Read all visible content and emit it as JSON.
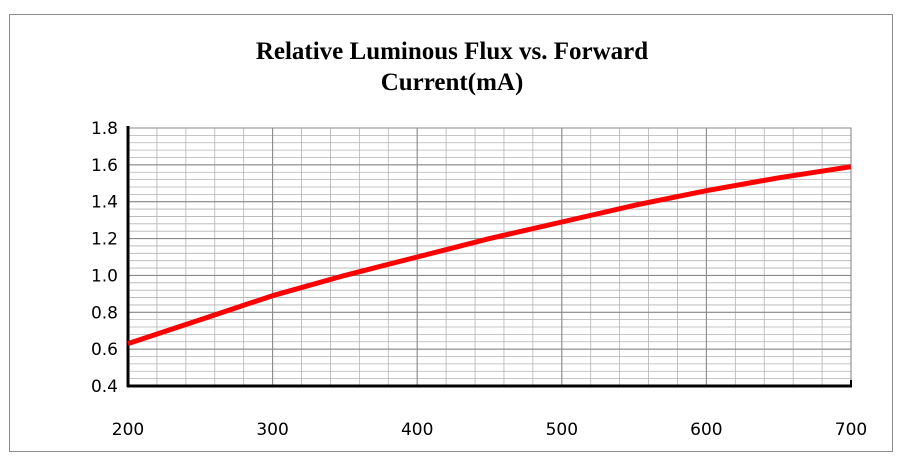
{
  "colors": {
    "series": "#ff0000",
    "grid": "#b3b3b3",
    "axis": "#000000"
  },
  "chart_data": {
    "type": "line",
    "title": "Relative Luminous Flux vs. Forward\nCurrent(mA)",
    "xlabel": "",
    "ylabel": "",
    "xlim": [
      200,
      700
    ],
    "ylim": [
      0.4,
      1.8
    ],
    "x_ticks": [
      200,
      300,
      400,
      500,
      600,
      700
    ],
    "y_ticks": [
      "1.8",
      "1.6",
      "1.4",
      "1.2",
      "1.0",
      "0.8",
      "0.6",
      "0.4"
    ],
    "x_minor_step": 20,
    "y_minor_step": 0.04,
    "grid": true,
    "legend": "none",
    "series": [
      {
        "x": [
          200,
          250,
          300,
          350,
          400,
          450,
          500,
          550,
          600,
          650,
          700
        ],
        "y": [
          0.63,
          0.76,
          0.89,
          1.0,
          1.1,
          1.2,
          1.29,
          1.38,
          1.46,
          1.53,
          1.59
        ]
      }
    ]
  }
}
